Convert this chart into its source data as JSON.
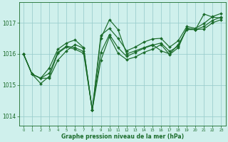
{
  "background_color": "#cff0ec",
  "grid_color": "#99cccc",
  "line_color": "#1a6b2a",
  "ylim": [
    1013.7,
    1017.65
  ],
  "xlim": [
    -0.5,
    23.5
  ],
  "yticks": [
    1014,
    1015,
    1016,
    1017
  ],
  "xticks": [
    0,
    1,
    2,
    3,
    4,
    5,
    6,
    7,
    8,
    9,
    10,
    11,
    12,
    13,
    14,
    15,
    16,
    17,
    18,
    19,
    20,
    21,
    22,
    23
  ],
  "xlabel": "Graphe pression niveau de la mer (hPa)",
  "series": [
    [
      1016.0,
      1015.35,
      1015.22,
      1015.22,
      1015.8,
      1016.1,
      1016.3,
      1016.18,
      1014.2,
      1016.5,
      1017.1,
      1016.78,
      1016.0,
      1016.1,
      1016.2,
      1016.3,
      1016.1,
      1016.0,
      1016.3,
      1016.78,
      1016.78,
      1017.28,
      1017.18,
      1017.15
    ],
    [
      1016.0,
      1015.35,
      1015.22,
      1015.55,
      1016.15,
      1016.35,
      1016.45,
      1016.2,
      1014.2,
      1016.6,
      1016.82,
      1016.5,
      1016.1,
      1016.22,
      1016.38,
      1016.48,
      1016.5,
      1016.22,
      1016.42,
      1016.88,
      1016.82,
      1016.98,
      1017.2,
      1017.3
    ],
    [
      1016.0,
      1015.35,
      1015.22,
      1015.38,
      1016.05,
      1016.25,
      1016.2,
      1016.08,
      1014.2,
      1016.05,
      1016.62,
      1016.2,
      1015.92,
      1016.05,
      1016.18,
      1016.28,
      1016.35,
      1016.08,
      1016.25,
      1016.82,
      1016.78,
      1016.88,
      1017.08,
      1017.18
    ],
    [
      1016.0,
      1015.35,
      1015.05,
      1015.28,
      1016.02,
      1016.22,
      1016.15,
      1016.02,
      1014.2,
      1015.8,
      1016.55,
      1016.02,
      1015.82,
      1015.9,
      1016.05,
      1016.15,
      1016.3,
      1015.98,
      1016.2,
      1016.82,
      1016.78,
      1016.8,
      1017.0,
      1017.1
    ]
  ]
}
